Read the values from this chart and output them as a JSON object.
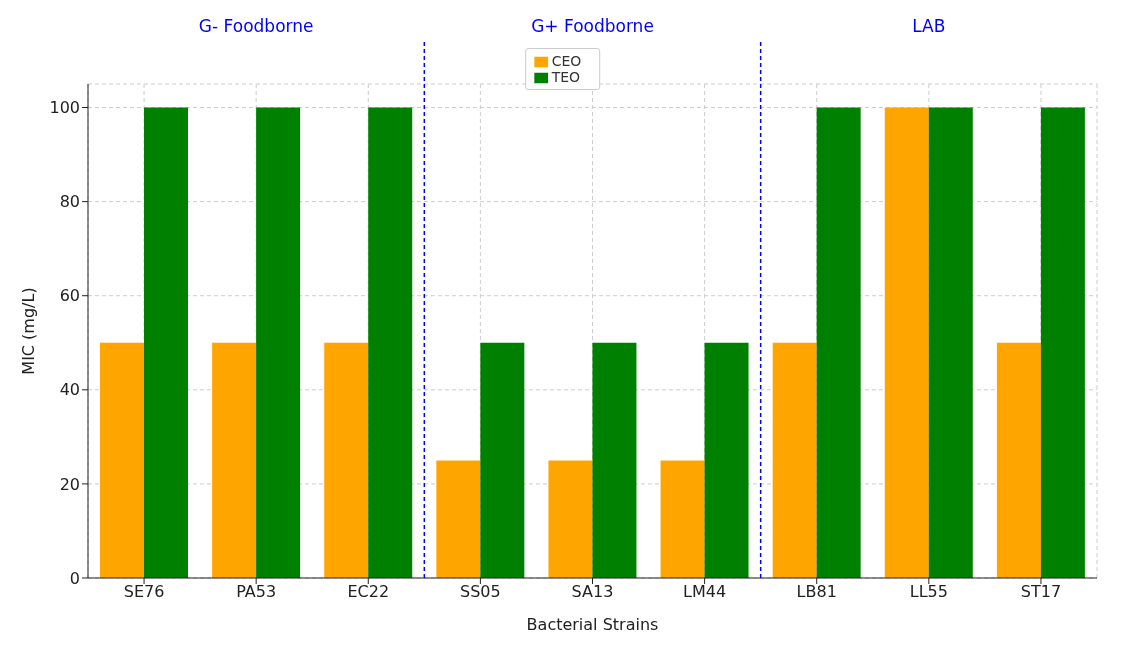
{
  "chart_data": {
    "type": "bar",
    "xlabel": "Bacterial Strains",
    "ylabel": "MIC (mg/L)",
    "categories": [
      "SE76",
      "PA53",
      "EC22",
      "SS05",
      "SA13",
      "LM44",
      "LB81",
      "LL55",
      "ST17"
    ],
    "series": [
      {
        "name": "CEO",
        "color": "#ffa500",
        "values": [
          50,
          50,
          50,
          25,
          25,
          25,
          50,
          100,
          50
        ]
      },
      {
        "name": "TEO",
        "color": "#008000",
        "values": [
          100,
          100,
          100,
          50,
          50,
          50,
          100,
          100,
          100
        ]
      }
    ],
    "ylim": [
      0,
      105
    ],
    "yticks": [
      0,
      20,
      40,
      60,
      80,
      100
    ],
    "grid": true,
    "legend": "top",
    "annotations": [
      "G- Foodborne",
      "G+ Foodborne",
      "LAB"
    ]
  }
}
